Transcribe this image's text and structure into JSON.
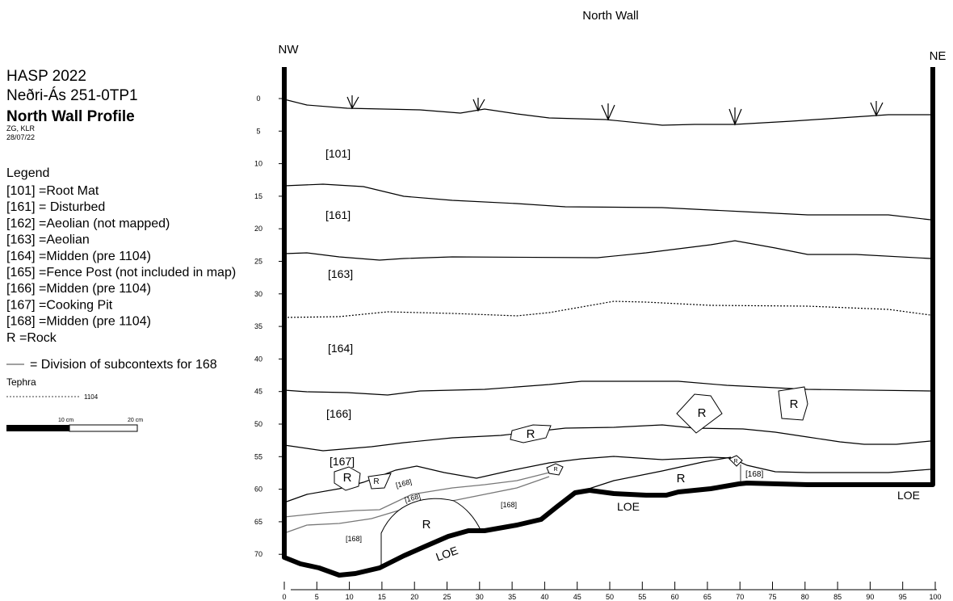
{
  "title": "North Wall",
  "wall_labels": {
    "left": "NW",
    "right": "NE"
  },
  "header": {
    "project": "HASP 2022",
    "site": "Neðri-Ás 251-0TP1",
    "profile": "North Wall Profile",
    "recorders": "ZG, KLR",
    "date": "28/07/22"
  },
  "legend": {
    "title": "Legend",
    "items": [
      "[101] =Root Mat",
      "[161] = Disturbed",
      "[162] =Aeolian (not mapped)",
      "[163] =Aeolian",
      "[164] =Midden (pre 1104)",
      "[165] =Fence Post (not included in map)",
      "[166] =Midden (pre 1104)",
      "[167] =Cooking Pit",
      "[168] =Midden (pre 1104)",
      "R =Rock"
    ],
    "division": "= Division of subcontexts for 168",
    "tephra_title": "Tephra",
    "tephra_label": "1104"
  },
  "scale_bar": {
    "labels": [
      "10 cm",
      "20 cm"
    ]
  },
  "contexts": [
    "[101]",
    "[161]",
    "[163]",
    "[164]",
    "[166]",
    "[167]",
    "[168]",
    "[168]",
    "[168]",
    "[168]",
    "[168]"
  ],
  "rocks": [
    "R",
    "R",
    "R",
    "R",
    "R",
    "R",
    "R",
    "R",
    "R"
  ],
  "loe": [
    "LOE",
    "LOE",
    "LOE"
  ],
  "depth_ticks": [
    0,
    5,
    10,
    15,
    20,
    25,
    30,
    35,
    40,
    45,
    50,
    55,
    60,
    65,
    70
  ],
  "distance_ticks": [
    0,
    5,
    10,
    15,
    20,
    25,
    30,
    35,
    40,
    45,
    50,
    55,
    60,
    65,
    70,
    75,
    80,
    85,
    90,
    95,
    100
  ]
}
